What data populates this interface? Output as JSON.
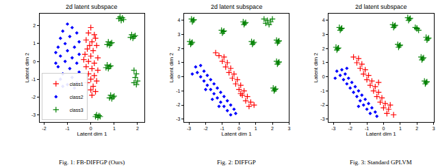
{
  "chart_data": [
    {
      "type": "scatter",
      "title": "2d latent subspace",
      "caption": "Fig. 1: FB-DIFFGP (Ours)",
      "x_label": "Latent dim 1",
      "y_label": "Latent dim 2",
      "xlim": [
        -2.2,
        2.3
      ],
      "ylim": [
        -3.4,
        2.7
      ],
      "xticks": [
        -2,
        -1,
        0,
        1,
        2
      ],
      "yticks": [
        -3,
        -2,
        -1,
        0,
        1,
        2
      ],
      "grid": false,
      "legend": "lower left",
      "series": [
        {
          "name": "class1",
          "color": "#ff0000",
          "marker": "plus",
          "x": [
            0.0,
            -0.1,
            0.15,
            -0.2,
            0.05,
            0.25,
            -0.15,
            0.1,
            -0.25,
            0.0,
            0.3,
            -0.1,
            0.15,
            -0.2,
            0.05,
            0.3,
            -0.1,
            0.15,
            0.0,
            0.25,
            -0.15,
            0.1,
            0.0,
            0.2,
            0.05,
            -0.05,
            0.2,
            -0.3
          ],
          "y": [
            1.9,
            1.6,
            1.5,
            1.2,
            1.1,
            0.9,
            0.7,
            0.6,
            0.4,
            0.3,
            0.2,
            0.0,
            -0.1,
            -0.3,
            -0.4,
            -0.5,
            -0.7,
            -0.8,
            -1.0,
            -1.1,
            -1.2,
            -1.4,
            -1.6,
            -1.7,
            -1.9,
            0.9,
            1.3,
            0.1
          ]
        },
        {
          "name": "class2",
          "color": "#0000ff",
          "marker": "diamond",
          "x": [
            -1.0,
            -0.8,
            -1.2,
            -0.6,
            -1.3,
            -0.9,
            -0.5,
            -1.1,
            -1.4,
            -0.7,
            -1.0,
            -0.5,
            -1.3,
            -0.8,
            -1.1,
            -0.6,
            -1.4,
            -0.9,
            -0.5,
            -1.2,
            -0.8,
            -1.3,
            -0.6,
            -1.0,
            -0.7,
            -1.5,
            -1.5,
            -1.2
          ],
          "y": [
            2.1,
            1.9,
            1.7,
            1.6,
            1.3,
            1.4,
            1.1,
            1.0,
            0.8,
            0.8,
            0.6,
            0.4,
            0.3,
            0.2,
            0.0,
            -0.1,
            -0.3,
            -0.4,
            -0.6,
            -0.7,
            -0.9,
            -1.0,
            -1.2,
            -1.3,
            -1.5,
            -0.1,
            0.5,
            -1.4
          ]
        },
        {
          "name": "class3",
          "color": "#008000",
          "marker": "plus",
          "x": [
            1.25,
            1.35,
            1.3,
            1.4,
            1.2,
            0.75,
            0.85,
            0.8,
            0.9,
            0.7,
            1.75,
            1.85,
            1.8,
            1.9,
            1.7,
            0.7,
            0.8,
            0.75,
            0.85,
            0.65,
            1.85,
            1.95,
            1.9,
            2.0,
            1.85,
            1.95,
            0.85,
            0.95,
            0.9,
            1.0,
            0.8,
            0.25,
            0.35,
            0.3,
            0.4,
            0.2
          ],
          "y": [
            2.5,
            2.45,
            2.3,
            2.35,
            2.4,
            1.1,
            1.0,
            0.9,
            1.05,
            0.95,
            1.5,
            1.4,
            1.3,
            1.45,
            1.35,
            -0.2,
            -0.3,
            -0.4,
            -0.25,
            -0.35,
            -0.5,
            -0.7,
            -0.9,
            -1.1,
            -1.2,
            -1.3,
            -1.9,
            -2.0,
            -2.1,
            -1.95,
            -2.05,
            -3.0,
            -3.05,
            -3.15,
            -3.1,
            -3.1
          ]
        }
      ]
    },
    {
      "type": "scatter",
      "title": "2d latent subspace",
      "caption": "Fig. 2: DIFFGP",
      "x_label": "Latent dim 1",
      "y_label": "Latent dim 2",
      "xlim": [
        -3.3,
        3.0
      ],
      "ylim": [
        -3.2,
        4.5
      ],
      "xticks": [
        -3,
        -2,
        -1,
        0,
        1,
        2,
        3
      ],
      "yticks": [
        -3,
        -2,
        -1,
        0,
        1,
        2,
        3,
        4
      ],
      "grid": false,
      "series": [
        {
          "color": "#ff0000",
          "marker": "plus",
          "x": [
            -1.2,
            -0.9,
            -1.0,
            -0.7,
            -0.8,
            -0.5,
            -0.6,
            -0.3,
            -0.4,
            -0.1,
            -0.2,
            0.1,
            0.0,
            0.3,
            0.2,
            0.5,
            0.4,
            0.7,
            0.6,
            0.9,
            -1.4,
            0.1
          ],
          "y": [
            1.5,
            1.4,
            1.1,
            1.0,
            0.7,
            0.6,
            0.3,
            0.2,
            -0.1,
            -0.2,
            -0.5,
            -0.6,
            -0.9,
            -1.0,
            -1.3,
            -1.4,
            -1.7,
            -1.8,
            -2.1,
            -2.0,
            1.7,
            -1.2
          ]
        },
        {
          "color": "#0000ff",
          "marker": "diamond",
          "x": [
            -2.6,
            -2.3,
            -2.5,
            -2.1,
            -2.3,
            -1.9,
            -2.1,
            -1.7,
            -1.9,
            -1.5,
            -1.7,
            -1.3,
            -1.5,
            -1.1,
            -1.3,
            -0.9,
            -1.1,
            -0.7,
            -0.9,
            -0.5,
            -0.7,
            -0.3,
            -0.5,
            -0.2,
            -2.8,
            -1.6,
            -1.2,
            -2.0
          ],
          "y": [
            0.7,
            0.8,
            0.3,
            0.4,
            0.0,
            0.1,
            -0.3,
            -0.2,
            -0.6,
            -0.5,
            -0.9,
            -0.8,
            -1.2,
            -1.1,
            -1.5,
            -1.4,
            -1.8,
            -1.7,
            -2.1,
            -2.0,
            -2.4,
            -2.3,
            -2.7,
            -2.6,
            0.2,
            -1.6,
            -2.1,
            -0.9
          ]
        },
        {
          "color": "#008000",
          "marker": "plus",
          "x": [
            -2.85,
            -2.75,
            -2.8,
            -2.7,
            -2.95,
            -2.85,
            -2.9,
            -2.8,
            -1.05,
            -0.95,
            -1.0,
            -0.9,
            0.25,
            0.35,
            0.3,
            0.4,
            1.5,
            1.7,
            1.9,
            1.6,
            1.8,
            2.0,
            0.75,
            0.85,
            0.8,
            0.9,
            2.25,
            2.35,
            2.3,
            2.4,
            2.25,
            2.35,
            2.3,
            2.4,
            2.05,
            2.15,
            2.1,
            2.2
          ],
          "y": [
            4.1,
            4.0,
            3.9,
            4.05,
            2.5,
            2.4,
            2.3,
            2.45,
            3.3,
            3.2,
            3.1,
            3.25,
            3.9,
            3.8,
            3.7,
            3.85,
            4.1,
            4.0,
            3.9,
            3.8,
            3.7,
            4.1,
            2.5,
            2.4,
            2.3,
            2.45,
            2.6,
            2.5,
            2.4,
            2.55,
            1.1,
            1.0,
            0.9,
            1.05,
            -0.8,
            -0.9,
            -1.0,
            -0.85
          ]
        }
      ]
    },
    {
      "type": "scatter",
      "title": "2d latent subspace",
      "caption": "Fig. 3: Standard GPLVM",
      "x_label": "Latent dim 1",
      "y_label": "Latent dim 2",
      "xlim": [
        -3.3,
        3.0
      ],
      "ylim": [
        -3.2,
        4.5
      ],
      "xticks": [
        -3,
        -2,
        -1,
        0,
        1,
        2,
        3
      ],
      "yticks": [
        -3,
        -2,
        -1,
        0,
        1,
        2,
        3,
        4
      ],
      "grid": false,
      "series": [
        {
          "color": "#ff0000",
          "marker": "plus",
          "x": [
            -1.8,
            -1.5,
            -1.6,
            -1.3,
            -1.4,
            -1.1,
            -1.2,
            -0.9,
            -1.0,
            -0.7,
            -0.8,
            -0.5,
            -0.6,
            -0.3,
            -0.4,
            -0.1,
            -0.2,
            0.1,
            0.0,
            0.3,
            0.2,
            0.6,
            -0.3,
            0.4
          ],
          "y": [
            1.4,
            1.3,
            1.0,
            0.9,
            0.6,
            0.5,
            0.2,
            0.1,
            -0.2,
            -0.3,
            -0.6,
            -0.7,
            -1.0,
            -1.1,
            -1.4,
            -1.5,
            -1.8,
            -1.9,
            -2.2,
            -2.3,
            -2.6,
            -2.7,
            -0.4,
            -2.0
          ]
        },
        {
          "color": "#0000ff",
          "marker": "diamond",
          "x": [
            -2.8,
            -2.5,
            -2.6,
            -2.3,
            -2.4,
            -2.1,
            -2.2,
            -1.9,
            -2.0,
            -1.7,
            -1.8,
            -1.5,
            -1.6,
            -1.3,
            -1.4,
            -1.1,
            -1.2,
            -0.9,
            -1.0,
            -0.7,
            -0.8,
            -0.5,
            -0.4,
            -2.9,
            -1.5,
            -2.2
          ],
          "y": [
            0.4,
            0.5,
            0.1,
            0.2,
            -0.2,
            -0.1,
            -0.5,
            -0.4,
            -0.8,
            -0.7,
            -1.1,
            -1.0,
            -1.4,
            -1.3,
            -1.7,
            -1.6,
            -2.0,
            -1.9,
            -2.3,
            -2.2,
            -2.6,
            -2.5,
            -2.8,
            -0.1,
            -2.1,
            0.6
          ]
        },
        {
          "color": "#008000",
          "marker": "plus",
          "x": [
            -2.65,
            -2.55,
            -2.6,
            -2.5,
            -2.85,
            -2.75,
            -2.8,
            -2.7,
            0.55,
            0.65,
            0.6,
            0.7,
            1.45,
            1.55,
            1.5,
            1.6,
            1.9,
            2.0,
            2.1,
            2.0,
            0.85,
            0.95,
            0.9,
            1.0,
            2.55,
            2.65,
            2.6,
            2.7,
            2.25,
            2.35,
            2.3,
            2.4,
            2.45,
            2.55,
            2.5,
            2.6
          ],
          "y": [
            3.5,
            3.4,
            3.3,
            3.45,
            2.1,
            2.0,
            1.9,
            2.05,
            3.7,
            3.6,
            3.5,
            3.65,
            4.2,
            4.1,
            4.0,
            4.15,
            3.5,
            3.4,
            3.3,
            3.45,
            2.3,
            2.2,
            2.1,
            2.25,
            2.8,
            2.7,
            2.6,
            2.75,
            1.4,
            1.3,
            1.2,
            1.35,
            -0.3,
            -0.4,
            -0.5,
            -0.35
          ]
        }
      ]
    }
  ]
}
